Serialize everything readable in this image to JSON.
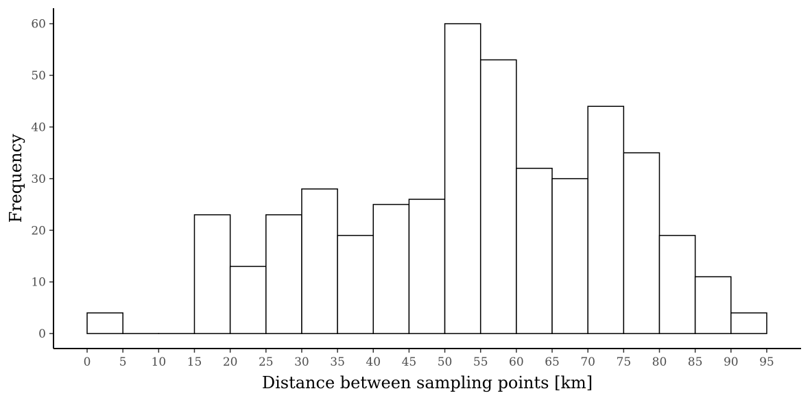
{
  "chart_data": {
    "type": "bar",
    "title": "",
    "xlabel": "Distance between sampling points [km]",
    "ylabel": "Frequency",
    "bin_edges": [
      0,
      5,
      10,
      15,
      20,
      25,
      30,
      35,
      40,
      45,
      50,
      55,
      60,
      65,
      70,
      75,
      80,
      85,
      90,
      95
    ],
    "values": [
      4,
      0,
      0,
      23,
      13,
      23,
      28,
      19,
      25,
      26,
      60,
      53,
      32,
      30,
      44,
      35,
      19,
      11,
      4
    ],
    "xlim": [
      -4.7,
      99.8
    ],
    "ylim": [
      -2.9,
      63
    ],
    "x_ticks": [
      "0",
      "5",
      "10",
      "15",
      "20",
      "25",
      "30",
      "35",
      "40",
      "45",
      "50",
      "55",
      "60",
      "65",
      "70",
      "75",
      "80",
      "85",
      "90",
      "95"
    ],
    "y_ticks": [
      "0",
      "10",
      "20",
      "30",
      "40",
      "50",
      "60"
    ],
    "grid": false,
    "bar_fill": "#ffffff",
    "bar_stroke": "#000000"
  }
}
